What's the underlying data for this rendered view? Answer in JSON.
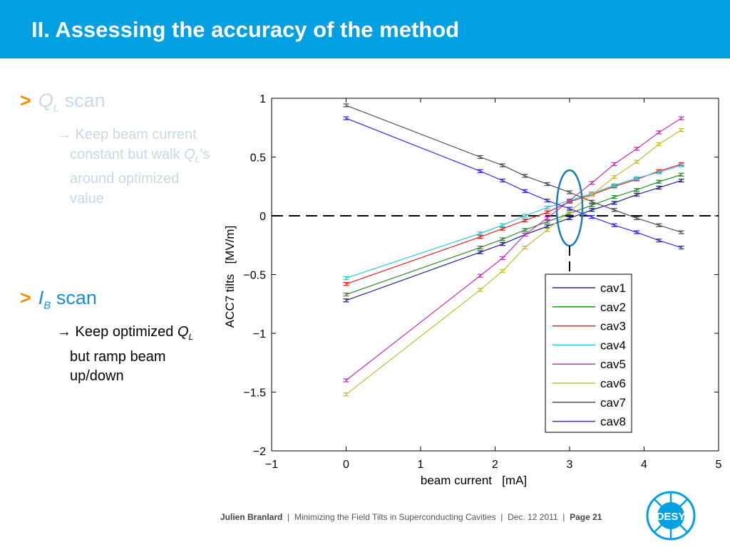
{
  "header": {
    "title": "II. Assessing the accuracy of the method"
  },
  "bullets": [
    {
      "marker": ">",
      "symbol": "Q",
      "subscript": "L",
      "label": " scan",
      "lines": [
        {
          "text": "→ Keep beam current"
        },
        {
          "text": "constant but walk ",
          "symbol": "Q",
          "subscript": "L",
          "after": "’s"
        },
        {
          "text": "around  optimized"
        },
        {
          "text": "value"
        }
      ]
    },
    {
      "marker": ">",
      "symbol": "I",
      "subscript": "B",
      "label": " scan",
      "lines": [
        {
          "text": "→ Keep optimized ",
          "symbol": "Q",
          "subscript": "L"
        },
        {
          "text": "but ramp beam"
        },
        {
          "text": "up/down"
        }
      ]
    }
  ],
  "chart_data": {
    "type": "line",
    "x_label": "beam current   [mA]",
    "y_label": "ACC7 tilts   [MV/m]",
    "x": [
      0,
      1.8,
      2.1,
      2.4,
      2.7,
      3.0,
      3.3,
      3.6,
      3.9,
      4.2,
      4.5
    ],
    "xlim": [
      -1,
      5
    ],
    "xticks": [
      {
        "value": -1,
        "label": "−1"
      },
      0,
      1,
      2,
      3,
      4,
      5
    ],
    "ylim": [
      -2,
      1
    ],
    "yticks": [
      {
        "value": -2,
        "label": "−2"
      },
      {
        "value": -1.5,
        "label": "−1.5"
      },
      {
        "value": -1,
        "label": "−1"
      },
      {
        "value": -0.5,
        "label": "−0.5"
      },
      0,
      0.5,
      1
    ],
    "error": 0.012,
    "legend": "lower-right",
    "series": [
      {
        "name": "cav1",
        "color": "#23238c",
        "values": [
          -0.72,
          -0.31,
          -0.24,
          -0.16,
          -0.09,
          -0.02,
          0.05,
          0.11,
          0.18,
          0.24,
          0.3
        ]
      },
      {
        "name": "cav2",
        "color": "#2e8b2e",
        "values": [
          -0.67,
          -0.27,
          -0.2,
          -0.12,
          -0.05,
          0.02,
          0.09,
          0.16,
          0.22,
          0.29,
          0.35
        ]
      },
      {
        "name": "cav3",
        "color": "#e52020",
        "values": [
          -0.58,
          -0.18,
          -0.11,
          -0.04,
          0.03,
          0.12,
          0.18,
          0.25,
          0.31,
          0.38,
          0.44
        ]
      },
      {
        "name": "cav4",
        "color": "#30c8d8",
        "values": [
          -0.53,
          -0.15,
          -0.08,
          0.0,
          0.07,
          0.13,
          0.19,
          0.26,
          0.32,
          0.37,
          0.43
        ]
      },
      {
        "name": "cav5",
        "color": "#c030c0",
        "values": [
          -1.4,
          -0.51,
          -0.36,
          -0.16,
          -0.02,
          0.13,
          0.28,
          0.44,
          0.57,
          0.71,
          0.83
        ]
      },
      {
        "name": "cav6",
        "color": "#c0c030",
        "values": [
          -1.52,
          -0.63,
          -0.47,
          -0.27,
          -0.12,
          0.04,
          0.18,
          0.33,
          0.46,
          0.61,
          0.73
        ]
      },
      {
        "name": "cav7",
        "color": "#505050",
        "values": [
          0.94,
          0.5,
          0.43,
          0.34,
          0.27,
          0.2,
          0.12,
          0.05,
          -0.02,
          -0.08,
          -0.14
        ]
      },
      {
        "name": "cav8",
        "color": "#3030e0",
        "values": [
          0.83,
          0.38,
          0.3,
          0.21,
          0.13,
          0.06,
          -0.01,
          -0.08,
          -0.14,
          -0.21,
          -0.27
        ]
      }
    ]
  },
  "footer": {
    "author": "Julien Branlard",
    "separator": "|",
    "talk": "Minimizing the Field Tilts in Superconducting Cavities",
    "date": "Dec. 12 2011",
    "page": "Page 21"
  },
  "logo": {
    "text": "DESY"
  }
}
